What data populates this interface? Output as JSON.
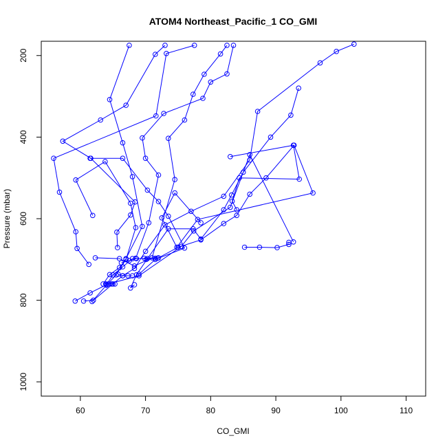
{
  "chart_data": {
    "type": "scatter",
    "title": "ATOM4 Northeast_Pacific_1 CO_GMI",
    "xlabel": "CO_GMI",
    "ylabel": "Pressure (mbar)",
    "xlim": [
      54,
      113
    ],
    "ylim": [
      1035,
      165
    ],
    "x_ticks": [
      60,
      70,
      80,
      90,
      100,
      110
    ],
    "y_ticks": [
      200,
      400,
      600,
      800,
      1000
    ],
    "y_inverted": true,
    "grid": false,
    "legend": "none",
    "color": "#0000ff",
    "marker": "open-circle",
    "series": [
      {
        "values": [
          {
            "x": 59.2,
            "y": 802
          },
          {
            "x": 61.5,
            "y": 782
          },
          {
            "x": 64.0,
            "y": 762
          },
          {
            "x": 65.0,
            "y": 738
          },
          {
            "x": 66.5,
            "y": 718
          },
          {
            "x": 68.0,
            "y": 698
          },
          {
            "x": 72.0,
            "y": 696
          },
          {
            "x": 75.0,
            "y": 670
          },
          {
            "x": 78.5,
            "y": 652
          },
          {
            "x": 82.0,
            "y": 612
          },
          {
            "x": 84.0,
            "y": 592
          },
          {
            "x": 86.0,
            "y": 540
          },
          {
            "x": 88.5,
            "y": 500
          },
          {
            "x": 92.8,
            "y": 420
          },
          {
            "x": 95.7,
            "y": 537
          },
          {
            "x": 78.0,
            "y": 602
          },
          {
            "x": 74.8,
            "y": 670
          },
          {
            "x": 72.5,
            "y": 598
          },
          {
            "x": 74.5,
            "y": 537
          },
          {
            "x": 78.5,
            "y": 610
          }
        ]
      },
      {
        "values": [
          {
            "x": 60.5,
            "y": 802
          },
          {
            "x": 62.0,
            "y": 800
          },
          {
            "x": 65.0,
            "y": 760
          },
          {
            "x": 66.5,
            "y": 740
          },
          {
            "x": 68.3,
            "y": 722
          },
          {
            "x": 70.0,
            "y": 680
          },
          {
            "x": 73.0,
            "y": 615
          },
          {
            "x": 77.0,
            "y": 582
          },
          {
            "x": 82.0,
            "y": 545
          },
          {
            "x": 86.0,
            "y": 456
          },
          {
            "x": 87.2,
            "y": 337
          },
          {
            "x": 96.8,
            "y": 218
          },
          {
            "x": 99.3,
            "y": 190
          },
          {
            "x": 102.0,
            "y": 172
          }
        ]
      },
      {
        "values": [
          {
            "x": 61.8,
            "y": 803
          },
          {
            "x": 64.0,
            "y": 763
          },
          {
            "x": 65.5,
            "y": 738
          },
          {
            "x": 67.0,
            "y": 698
          },
          {
            "x": 69.5,
            "y": 619
          },
          {
            "x": 68.0,
            "y": 497
          },
          {
            "x": 66.5,
            "y": 414
          },
          {
            "x": 64.5,
            "y": 308
          },
          {
            "x": 67.5,
            "y": 175
          }
        ]
      },
      {
        "values": [
          {
            "x": 62.3,
            "y": 696
          },
          {
            "x": 66.0,
            "y": 698
          },
          {
            "x": 68.3,
            "y": 716
          },
          {
            "x": 71.0,
            "y": 696
          },
          {
            "x": 74.5,
            "y": 504
          },
          {
            "x": 73.5,
            "y": 403
          },
          {
            "x": 76.0,
            "y": 358
          },
          {
            "x": 77.3,
            "y": 295
          },
          {
            "x": 79.0,
            "y": 246
          },
          {
            "x": 81.5,
            "y": 196
          },
          {
            "x": 82.5,
            "y": 175
          }
        ]
      },
      {
        "values": [
          {
            "x": 68.5,
            "y": 697
          },
          {
            "x": 70.5,
            "y": 610
          },
          {
            "x": 72.0,
            "y": 493
          },
          {
            "x": 70.0,
            "y": 452
          },
          {
            "x": 69.5,
            "y": 402
          },
          {
            "x": 72.8,
            "y": 342
          },
          {
            "x": 78.8,
            "y": 305
          },
          {
            "x": 80.0,
            "y": 265
          },
          {
            "x": 82.5,
            "y": 245
          },
          {
            "x": 83.5,
            "y": 175
          }
        ]
      },
      {
        "values": [
          {
            "x": 61.3,
            "y": 712
          },
          {
            "x": 59.5,
            "y": 673
          },
          {
            "x": 59.3,
            "y": 632
          },
          {
            "x": 56.8,
            "y": 535
          },
          {
            "x": 55.9,
            "y": 452
          },
          {
            "x": 71.6,
            "y": 348
          },
          {
            "x": 73.2,
            "y": 195
          },
          {
            "x": 77.5,
            "y": 175
          }
        ]
      },
      {
        "values": [
          {
            "x": 65.7,
            "y": 671
          },
          {
            "x": 65.6,
            "y": 633
          },
          {
            "x": 67.7,
            "y": 591
          },
          {
            "x": 68.4,
            "y": 559
          },
          {
            "x": 61.6,
            "y": 452
          },
          {
            "x": 57.3,
            "y": 410
          },
          {
            "x": 63.1,
            "y": 358
          },
          {
            "x": 67.0,
            "y": 322
          },
          {
            "x": 71.5,
            "y": 197
          },
          {
            "x": 73.0,
            "y": 175
          }
        ]
      },
      {
        "values": [
          {
            "x": 68.3,
            "y": 762
          },
          {
            "x": 67.7,
            "y": 770
          },
          {
            "x": 68.6,
            "y": 738
          },
          {
            "x": 70.3,
            "y": 698
          },
          {
            "x": 73.5,
            "y": 625
          },
          {
            "x": 77.3,
            "y": 625
          },
          {
            "x": 78.5,
            "y": 650
          },
          {
            "x": 82.0,
            "y": 578
          },
          {
            "x": 83.2,
            "y": 542
          },
          {
            "x": 85.0,
            "y": 486
          },
          {
            "x": 89.2,
            "y": 400
          },
          {
            "x": 92.3,
            "y": 346
          },
          {
            "x": 93.5,
            "y": 280
          }
        ]
      },
      {
        "values": [
          {
            "x": 64.3,
            "y": 760
          },
          {
            "x": 69.0,
            "y": 740
          },
          {
            "x": 75.5,
            "y": 668
          },
          {
            "x": 77.4,
            "y": 630
          },
          {
            "x": 83.0,
            "y": 572
          },
          {
            "x": 86.0,
            "y": 443
          },
          {
            "x": 92.7,
            "y": 657
          }
        ]
      },
      {
        "values": [
          {
            "x": 85.2,
            "y": 670
          },
          {
            "x": 87.5,
            "y": 670
          },
          {
            "x": 90.2,
            "y": 671
          },
          {
            "x": 92.0,
            "y": 663
          },
          {
            "x": 92.0,
            "y": 658
          }
        ]
      },
      {
        "values": [
          {
            "x": 69.0,
            "y": 736
          },
          {
            "x": 71.5,
            "y": 700
          },
          {
            "x": 76.0,
            "y": 672
          },
          {
            "x": 73.5,
            "y": 594
          },
          {
            "x": 72.0,
            "y": 558
          },
          {
            "x": 70.3,
            "y": 530
          },
          {
            "x": 66.5,
            "y": 452
          },
          {
            "x": 61.5,
            "y": 452
          }
        ]
      },
      {
        "values": [
          {
            "x": 63.5,
            "y": 760
          },
          {
            "x": 64.5,
            "y": 737
          },
          {
            "x": 66.0,
            "y": 720
          },
          {
            "x": 67.0,
            "y": 700
          },
          {
            "x": 68.5,
            "y": 622
          },
          {
            "x": 67.7,
            "y": 562
          },
          {
            "x": 63.8,
            "y": 460
          },
          {
            "x": 59.3,
            "y": 505
          },
          {
            "x": 61.9,
            "y": 592
          }
        ]
      },
      {
        "values": [
          {
            "x": 83.0,
            "y": 448
          },
          {
            "x": 92.7,
            "y": 420
          },
          {
            "x": 93.6,
            "y": 503
          },
          {
            "x": 84.4,
            "y": 500
          },
          {
            "x": 83.3,
            "y": 557
          },
          {
            "x": 84.0,
            "y": 578
          }
        ]
      },
      {
        "values": [
          {
            "x": 69.8,
            "y": 697
          },
          {
            "x": 70.1,
            "y": 700
          },
          {
            "x": 71.5,
            "y": 697
          },
          {
            "x": 71.8,
            "y": 697
          }
        ]
      },
      {
        "values": [
          {
            "x": 65.8,
            "y": 736
          },
          {
            "x": 66.5,
            "y": 740
          },
          {
            "x": 67.3,
            "y": 740
          },
          {
            "x": 68.0,
            "y": 740
          }
        ]
      },
      {
        "values": [
          {
            "x": 64.8,
            "y": 760
          },
          {
            "x": 65.3,
            "y": 760
          },
          {
            "x": 63.9,
            "y": 760
          }
        ]
      },
      {
        "values": [
          {
            "x": 66.3,
            "y": 708
          },
          {
            "x": 67.5,
            "y": 703
          },
          {
            "x": 68.6,
            "y": 698
          }
        ]
      }
    ]
  }
}
